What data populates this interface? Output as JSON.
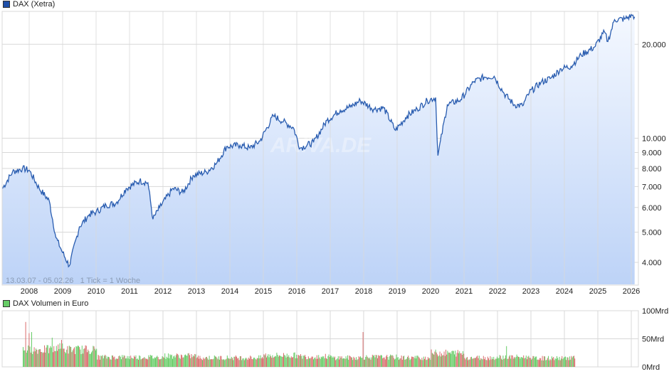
{
  "main_legend": {
    "label": "DAX (Xetra)",
    "color": "#1f4fa8"
  },
  "volume_legend": {
    "label": "DAX Volumen in Euro",
    "color": "#66cc66"
  },
  "range_text": "13.03.07 - 05.02.26   1 Tick = 1 Woche",
  "watermark": "ARIVA.DE",
  "colors": {
    "line": "#2a5db0",
    "area_top": "#f4f8ff",
    "area_bottom": "#bdd3f7",
    "grid": "#d8d8d8",
    "vol_up": "#66cc66",
    "vol_down": "#d96b6b"
  },
  "chart_data": [
    {
      "type": "area",
      "title": "DAX (Xetra)",
      "xlabel": "",
      "ylabel": "",
      "y_scale": "log",
      "ylim": [
        3400,
        25500
      ],
      "date_range": "13.03.07 - 05.02.26",
      "tick_note": "1 Tick = 1 Woche",
      "x_tick_labels": [
        "2008",
        "2009",
        "2010",
        "2011",
        "2012",
        "2013",
        "2014",
        "2015",
        "2016",
        "2017",
        "2018",
        "2019",
        "2020",
        "2021",
        "2022",
        "2023",
        "2024",
        "2025",
        "2026"
      ],
      "y_tick_labels": [
        "4.000",
        "5.000",
        "6.000",
        "7.000",
        "8.000",
        "9.000",
        "10.000",
        "20.000"
      ],
      "y_ticks": [
        4000,
        5000,
        6000,
        7000,
        8000,
        9000,
        10000,
        20000
      ],
      "grid": true,
      "legend_position": "top-left",
      "x": [
        2007.2,
        2007.5,
        2007.8,
        2008.0,
        2008.3,
        2008.6,
        2008.8,
        2009.0,
        2009.2,
        2009.5,
        2009.8,
        2010.0,
        2010.3,
        2010.6,
        2010.9,
        2011.3,
        2011.55,
        2011.7,
        2011.9,
        2012.3,
        2012.6,
        2012.9,
        2013.3,
        2013.6,
        2013.9,
        2014.3,
        2014.6,
        2014.9,
        2015.3,
        2015.6,
        2015.9,
        2016.1,
        2016.5,
        2016.9,
        2017.3,
        2017.6,
        2017.9,
        2018.3,
        2018.6,
        2018.95,
        2019.3,
        2019.6,
        2019.9,
        2020.15,
        2020.22,
        2020.5,
        2020.9,
        2021.3,
        2021.6,
        2021.9,
        2022.2,
        2022.5,
        2022.75,
        2022.95,
        2023.3,
        2023.6,
        2023.9,
        2024.2,
        2024.5,
        2024.9,
        2025.2,
        2025.3,
        2025.5,
        2025.8,
        2026.05,
        2026.1
      ],
      "values": [
        6900,
        7800,
        8000,
        7900,
        6900,
        6300,
        4800,
        4300,
        3900,
        5200,
        5700,
        5800,
        6100,
        6200,
        6900,
        7300,
        7200,
        5500,
        6000,
        6900,
        6700,
        7600,
        7800,
        8300,
        9400,
        9500,
        9300,
        9800,
        11800,
        11300,
        10800,
        9300,
        9700,
        11400,
        12300,
        12600,
        13200,
        12400,
        12500,
        10600,
        11800,
        12400,
        13200,
        13500,
        8800,
        12800,
        13300,
        15200,
        15700,
        15800,
        13900,
        12800,
        12700,
        14000,
        15100,
        15600,
        16700,
        17000,
        18500,
        19600,
        21900,
        20400,
        24000,
        24100,
        24800,
        24500
      ]
    },
    {
      "type": "bar",
      "title": "DAX Volumen in Euro",
      "ylim": [
        0,
        100
      ],
      "y_unit": "Mrd",
      "y_tick_labels": [
        "0Mrd",
        "50Mrd",
        "100Mrd"
      ],
      "series": [
        {
          "name": "up-week volume (green)",
          "note": "typical 12–22 Mrd, peak ~62 Mrd (2009, 2020)"
        },
        {
          "name": "down-week volume (red)",
          "note": "typical 12–20 Mrd, peaks ~80 Mrd (2008), ~52 Mrd (2020)"
        }
      ],
      "x": [
        2008,
        2009,
        2010,
        2011,
        2012,
        2013,
        2014,
        2015,
        2016,
        2017,
        2018,
        2019,
        2020,
        2021,
        2022,
        2023,
        2024
      ],
      "values": [
        38,
        30,
        17,
        17,
        19,
        16,
        16,
        20,
        18,
        16,
        17,
        16,
        24,
        16,
        17,
        15,
        16
      ]
    }
  ]
}
